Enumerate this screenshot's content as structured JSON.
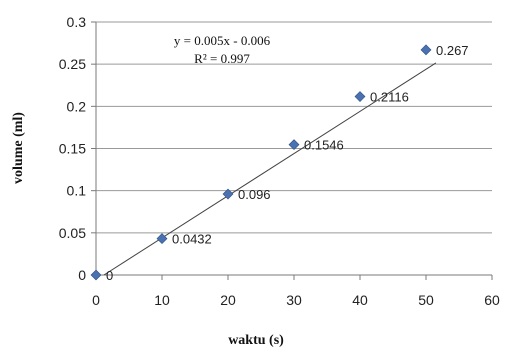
{
  "chart_data": {
    "type": "scatter",
    "xlabel": "waktu (s)",
    "ylabel": "volume (ml)",
    "xlim": [
      0,
      60
    ],
    "ylim": [
      0,
      0.3
    ],
    "x_ticks": [
      "0",
      "10",
      "20",
      "30",
      "40",
      "50",
      "60"
    ],
    "y_ticks": [
      "0",
      "0.05",
      "0.1",
      "0.15",
      "0.2",
      "0.25",
      "0.3"
    ],
    "grid": "horizontal",
    "marker_color": "#4a72b0",
    "points": [
      {
        "x": 0,
        "y": 0,
        "label": "0"
      },
      {
        "x": 10,
        "y": 0.0432,
        "label": "0.0432"
      },
      {
        "x": 20,
        "y": 0.096,
        "label": "0.096"
      },
      {
        "x": 30,
        "y": 0.1546,
        "label": "0.1546"
      },
      {
        "x": 40,
        "y": 0.2116,
        "label": "0.2116"
      },
      {
        "x": 50,
        "y": 0.267,
        "label": "0.267"
      }
    ],
    "trendline": {
      "type": "linear",
      "slope": 0.005,
      "intercept": -0.006,
      "equation": "y = 0.005x - 0.006",
      "r_squared": "R² = 0.997"
    }
  }
}
